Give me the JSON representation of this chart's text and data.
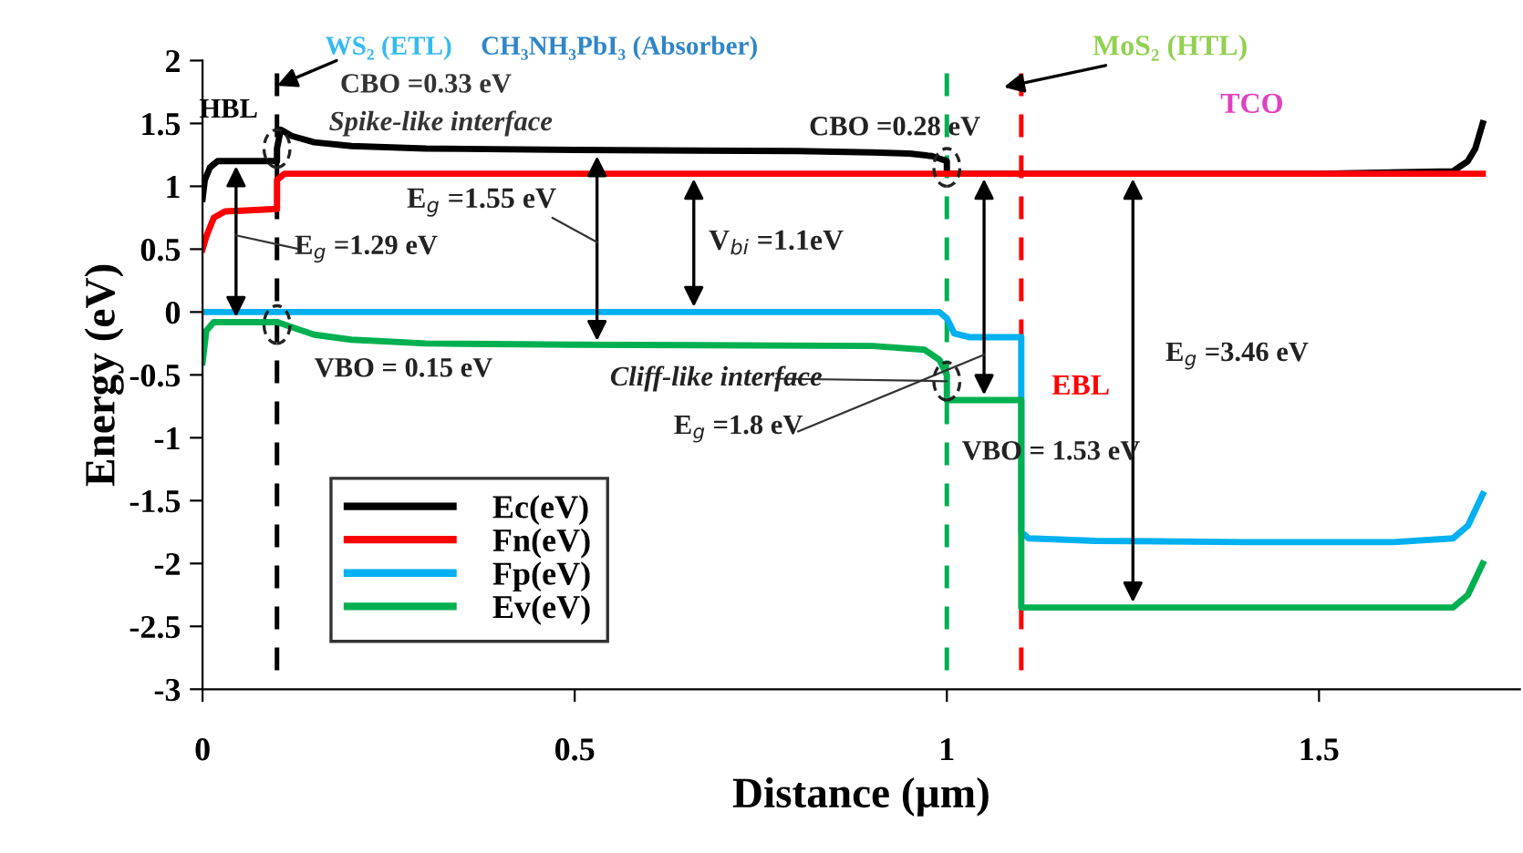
{
  "chart_data": {
    "type": "line",
    "xlabel": "Distance (µm)",
    "ylabel": "Energy (eV)",
    "xlim": [
      0,
      1.77
    ],
    "ylim": [
      -3,
      2
    ],
    "xticks": [
      0,
      0.5,
      1,
      1.5
    ],
    "yticks": [
      2,
      1.5,
      1,
      0.5,
      0,
      -0.5,
      -1,
      -1.5,
      -2,
      -2.5,
      -3
    ],
    "grid": false,
    "legend": "bottom left",
    "marker": "none",
    "line_style": "solid",
    "series": [
      {
        "name": "Ec(eV)",
        "color": "#000000",
        "x": [
          0,
          0.003,
          0.01,
          0.02,
          0.1,
          0.1,
          0.105,
          0.12,
          0.15,
          0.2,
          0.3,
          0.5,
          0.8,
          0.9,
          0.95,
          0.98,
          1.0,
          1.0,
          1.1,
          1.5,
          1.68,
          1.7,
          1.71,
          1.72
        ],
        "values": [
          0.9,
          1.05,
          1.15,
          1.2,
          1.2,
          1.3,
          1.45,
          1.4,
          1.35,
          1.32,
          1.3,
          1.29,
          1.28,
          1.27,
          1.26,
          1.24,
          1.2,
          1.1,
          1.1,
          1.1,
          1.12,
          1.2,
          1.3,
          1.5
        ]
      },
      {
        "name": "Fn(eV)",
        "color": "#ff0000",
        "x": [
          0,
          0.005,
          0.015,
          0.03,
          0.1,
          0.1,
          0.11,
          0.5,
          1.0,
          1.5,
          1.72
        ],
        "values": [
          0.5,
          0.6,
          0.75,
          0.8,
          0.82,
          1.05,
          1.1,
          1.1,
          1.1,
          1.1,
          1.1
        ]
      },
      {
        "name": "Fp(eV)",
        "color": "#00b0f0",
        "x": [
          0,
          0.5,
          0.99,
          1.0,
          1.01,
          1.03,
          1.1,
          1.1,
          1.11,
          1.2,
          1.4,
          1.6,
          1.68,
          1.7,
          1.72
        ],
        "values": [
          0,
          0,
          0,
          -0.05,
          -0.17,
          -0.2,
          -0.2,
          -1.75,
          -1.8,
          -1.82,
          -1.83,
          -1.83,
          -1.8,
          -1.7,
          -1.45
        ]
      },
      {
        "name": "Ev(eV)",
        "color": "#00b050",
        "x": [
          0,
          0.005,
          0.015,
          0.03,
          0.1,
          0.105,
          0.12,
          0.15,
          0.2,
          0.3,
          0.5,
          0.9,
          0.97,
          0.99,
          1.0,
          1.0,
          1.1,
          1.1,
          1.2,
          1.5,
          1.68,
          1.7,
          1.72
        ],
        "values": [
          -0.4,
          -0.15,
          -0.08,
          -0.08,
          -0.08,
          -0.09,
          -0.12,
          -0.18,
          -0.22,
          -0.25,
          -0.26,
          -0.27,
          -0.3,
          -0.38,
          -0.5,
          -0.7,
          -0.7,
          -2.35,
          -2.35,
          -2.35,
          -2.35,
          -2.25,
          -2.0
        ]
      }
    ],
    "ref_lines": [
      {
        "axis": "x",
        "value": 0.1,
        "color": "#000000",
        "line_style": "dashed"
      },
      {
        "axis": "x",
        "value": 1.0,
        "color": "#00b050",
        "line_style": "dashed"
      },
      {
        "axis": "x",
        "value": 1.1,
        "color": "#ff0000",
        "line_style": "dashed"
      }
    ],
    "annotations": [
      {
        "text": "WS₂ (ETL)",
        "x": 0.1,
        "y": 1.8
      },
      "CH₃NH₃PbI₃ (Absorber)",
      "MoS₂ (HTL)",
      "TCO",
      "HBL",
      "CBO =0.33 eV",
      "Spike-like interface",
      "CBO =0.28 eV",
      "E$_{g}$ =1.55 eV",
      "V$_{bi}$ =1.1eV",
      "E$_{g}$ =1.29 eV",
      "VBO = 0.15 eV",
      {
        "text": "Cliff-like interface",
        "x": 1.0,
        "y": -0.55
      },
      "E$_{g}$ =1.8 eV",
      "VBO = 1.53 eV",
      "EBL",
      "E$_{g}$ =3.46 eV"
    ]
  }
}
